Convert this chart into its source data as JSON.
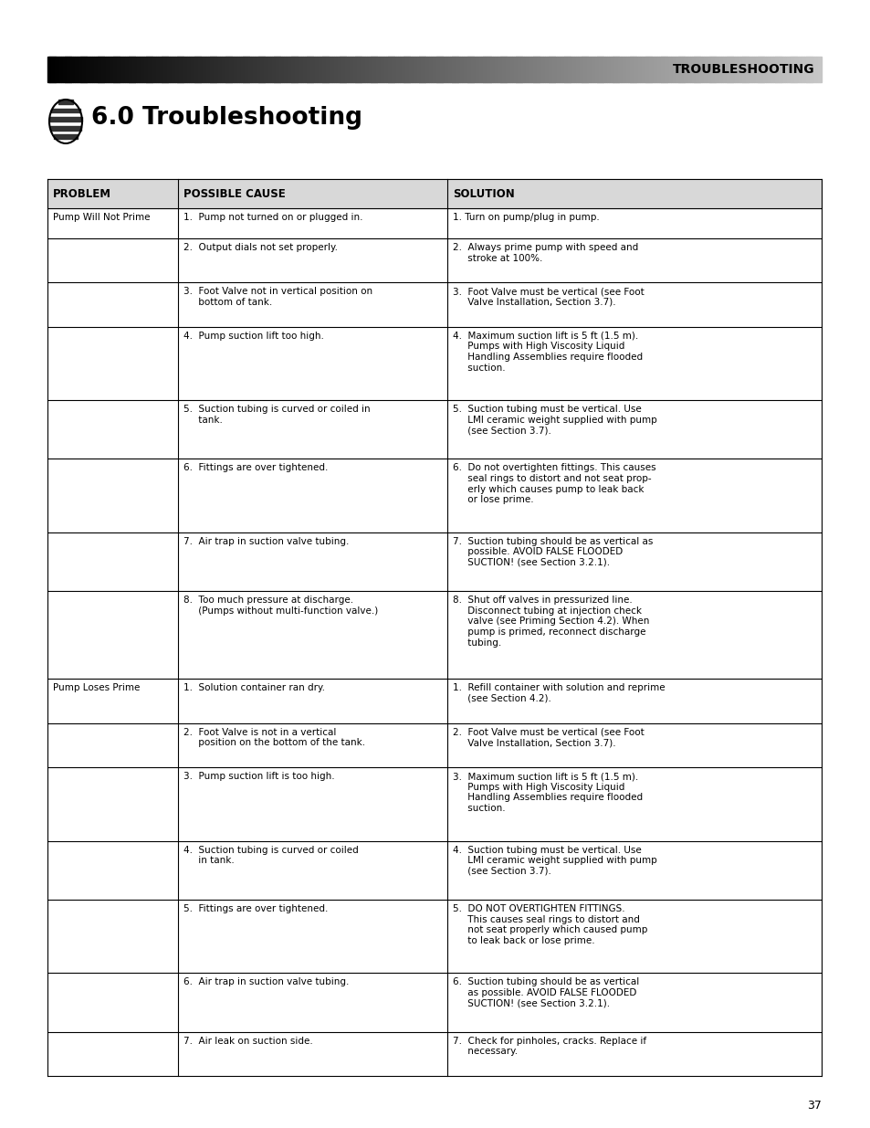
{
  "page_bg": "#ffffff",
  "header_text": "TROUBLESHOOTING",
  "section_title": "6.0 Troubleshooting",
  "page_num": "37",
  "rows": [
    {
      "problem": "Pump Will Not Prime",
      "cause": "1.  Pump not turned on or plugged in.",
      "solution": "1. Turn on pump/plug in pump."
    },
    {
      "problem": "",
      "cause": "2.  Output dials not set properly.",
      "solution": "2.  Always prime pump with speed and\n     stroke at 100%."
    },
    {
      "problem": "",
      "cause": "3.  Foot Valve not in vertical position on\n     bottom of tank.",
      "solution": "3.  Foot Valve must be vertical (see Foot\n     Valve Installation, Section 3.7)."
    },
    {
      "problem": "",
      "cause": "4.  Pump suction lift too high.",
      "solution": "4.  Maximum suction lift is 5 ft (1.5 m).\n     Pumps with High Viscosity Liquid\n     Handling Assemblies require flooded\n     suction."
    },
    {
      "problem": "",
      "cause": "5.  Suction tubing is curved or coiled in\n     tank.",
      "solution": "5.  Suction tubing must be vertical. Use\n     LMI ceramic weight supplied with pump\n     (see Section 3.7)."
    },
    {
      "problem": "",
      "cause": "6.  Fittings are over tightened.",
      "solution": "6.  Do not overtighten fittings. This causes\n     seal rings to distort and not seat prop-\n     erly which causes pump to leak back\n     or lose prime."
    },
    {
      "problem": "",
      "cause": "7.  Air trap in suction valve tubing.",
      "solution": "7.  Suction tubing should be as vertical as\n     possible. AVOID FALSE FLOODED\n     SUCTION! (see Section 3.2.1)."
    },
    {
      "problem": "",
      "cause": "8.  Too much pressure at discharge.\n     (Pumps without multi-function valve.)",
      "solution": "8.  Shut off valves in pressurized line.\n     Disconnect tubing at injection check\n     valve (see Priming Section 4.2). When\n     pump is primed, reconnect discharge\n     tubing."
    },
    {
      "problem": "Pump Loses Prime",
      "cause": "1.  Solution container ran dry.",
      "solution": "1.  Refill container with solution and reprime\n     (see Section 4.2)."
    },
    {
      "problem": "",
      "cause": "2.  Foot Valve is not in a vertical\n     position on the bottom of the tank.",
      "solution": "2.  Foot Valve must be vertical (see Foot\n     Valve Installation, Section 3.7)."
    },
    {
      "problem": "",
      "cause": "3.  Pump suction lift is too high.",
      "solution": "3.  Maximum suction lift is 5 ft (1.5 m).\n     Pumps with High Viscosity Liquid\n     Handling Assemblies require flooded\n     suction."
    },
    {
      "problem": "",
      "cause": "4.  Suction tubing is curved or coiled\n     in tank.",
      "solution": "4.  Suction tubing must be vertical. Use\n     LMI ceramic weight supplied with pump\n     (see Section 3.7)."
    },
    {
      "problem": "",
      "cause": "5.  Fittings are over tightened.",
      "solution": "5.  DO NOT OVERTIGHTEN FITTINGS.\n     This causes seal rings to distort and\n     not seat properly which caused pump\n     to leak back or lose prime."
    },
    {
      "problem": "",
      "cause": "6.  Air trap in suction valve tubing.",
      "solution": "6.  Suction tubing should be as vertical\n     as possible. AVOID FALSE FLOODED\n     SUCTION! (see Section 3.2.1)."
    },
    {
      "problem": "",
      "cause": "7.  Air leak on suction side.",
      "solution": "7.  Check for pinholes, cracks. Replace if\n     necessary."
    }
  ]
}
